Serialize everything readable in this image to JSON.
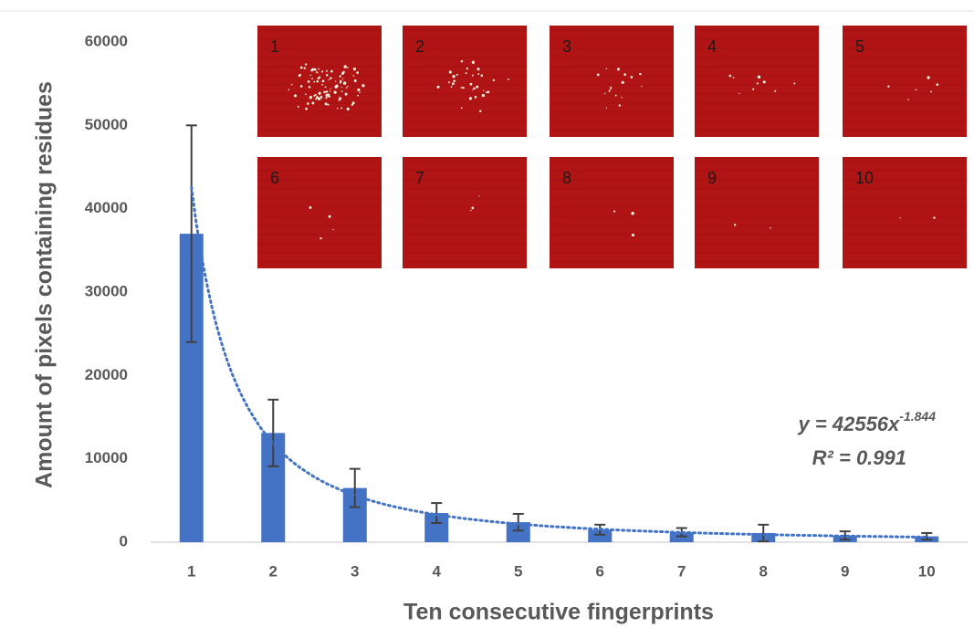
{
  "chart_data": {
    "type": "bar",
    "x_label": "Ten consecutive fingerprints",
    "y_label": "Amount of pixels containing residues",
    "categories": [
      "1",
      "2",
      "3",
      "4",
      "5",
      "6",
      "7",
      "8",
      "9",
      "10"
    ],
    "values": [
      37000,
      13100,
      6500,
      3500,
      2400,
      1500,
      1200,
      1100,
      800,
      700
    ],
    "errors": [
      13000,
      4000,
      2300,
      1200,
      1000,
      600,
      500,
      1000,
      500,
      400
    ],
    "color": "#4472c4",
    "ylim": [
      0,
      60000
    ],
    "yticks": [
      0,
      10000,
      20000,
      30000,
      40000,
      50000,
      60000
    ],
    "trendline": {
      "type": "power",
      "equation_prefix": "y = ",
      "coefficient": 42556,
      "variable": "x",
      "exponent": -1.844,
      "r2_prefix": "R² = ",
      "r2": 0.991,
      "color": "#4472c4"
    },
    "inset_labels": [
      "1",
      "2",
      "3",
      "4",
      "5",
      "6",
      "7",
      "8",
      "9",
      "10"
    ]
  }
}
